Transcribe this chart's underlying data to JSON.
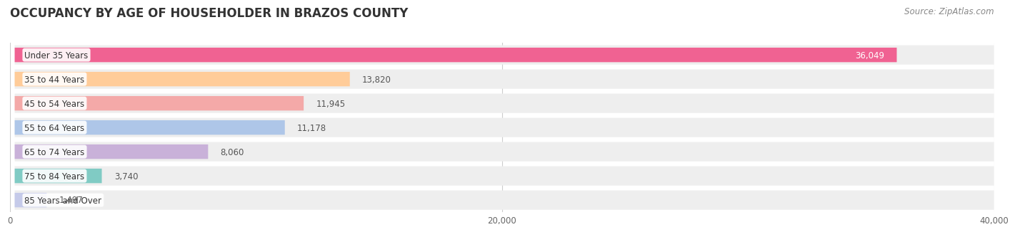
{
  "title": "OCCUPANCY BY AGE OF HOUSEHOLDER IN BRAZOS COUNTY",
  "source": "Source: ZipAtlas.com",
  "categories": [
    "Under 35 Years",
    "35 to 44 Years",
    "45 to 54 Years",
    "55 to 64 Years",
    "65 to 74 Years",
    "75 to 84 Years",
    "85 Years and Over"
  ],
  "values": [
    36049,
    13820,
    11945,
    11178,
    8060,
    3740,
    1497
  ],
  "bar_colors": [
    "#f06292",
    "#ffcc99",
    "#f4a9a8",
    "#aec6e8",
    "#c9b1d9",
    "#80cbc4",
    "#c5cae9"
  ],
  "bar_bg_color": "#eeeeee",
  "xlim": [
    0,
    40000
  ],
  "xticks": [
    0,
    20000,
    40000
  ],
  "xtick_labels": [
    "0",
    "20,000",
    "40,000"
  ],
  "background_color": "#ffffff",
  "title_fontsize": 12,
  "label_fontsize": 8.5,
  "value_fontsize": 8.5,
  "source_fontsize": 8.5
}
